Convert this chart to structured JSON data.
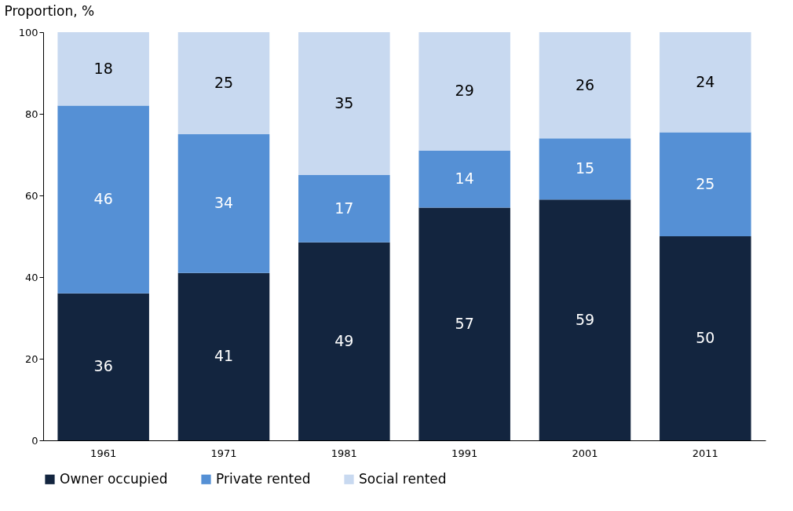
{
  "chart_data": {
    "type": "bar",
    "stacked": true,
    "ylabel": "Proportion, %",
    "categories": [
      "1961",
      "1971",
      "1981",
      "1991",
      "2001",
      "2011"
    ],
    "series": [
      {
        "name": "Owner occupied",
        "color": "#13253f",
        "values": [
          36,
          41,
          48.5,
          57,
          59,
          50
        ],
        "value_labels": [
          "36",
          "41",
          "49",
          "57",
          "59",
          "50"
        ]
      },
      {
        "name": "Private rented",
        "color": "#5590d5",
        "values": [
          46,
          34,
          16.5,
          14,
          15,
          25.5
        ],
        "value_labels": [
          "46",
          "34",
          "17",
          "14",
          "15",
          "25"
        ]
      },
      {
        "name": "Social rented",
        "color": "#c8d9f0",
        "values": [
          18,
          25,
          35,
          29,
          26,
          24.5
        ],
        "value_labels": [
          "18",
          "25",
          "35",
          "29",
          "26",
          "24"
        ]
      }
    ],
    "ylim": [
      0,
      100
    ],
    "yticks": [
      0,
      20,
      40,
      60,
      80,
      100
    ],
    "grid": false,
    "legend": "bottom"
  }
}
